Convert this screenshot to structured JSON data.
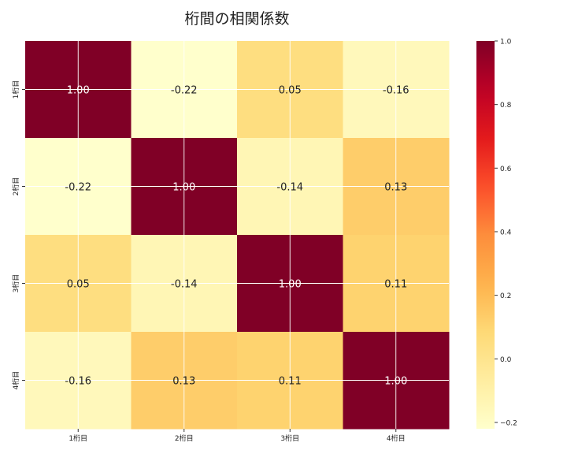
{
  "chart_data": {
    "type": "heatmap",
    "title": "桁間の相関係数",
    "xlabel": "",
    "ylabel": "",
    "x_categories": [
      "1桁目",
      "2桁目",
      "3桁目",
      "4桁目"
    ],
    "y_categories": [
      "1桁目",
      "2桁目",
      "3桁目",
      "4桁目"
    ],
    "values": [
      [
        1.0,
        -0.22,
        0.05,
        -0.16
      ],
      [
        -0.22,
        1.0,
        -0.14,
        0.13
      ],
      [
        0.05,
        -0.14,
        1.0,
        0.11
      ],
      [
        -0.16,
        0.13,
        0.11,
        1.0
      ]
    ],
    "colormap": "YlOrRd",
    "colorbar": {
      "range": [
        -0.22,
        1.0
      ],
      "ticks": [
        "1.0",
        "0.8",
        "0.6",
        "0.4",
        "0.2",
        "0.0",
        "−0.2"
      ],
      "tick_values": [
        1.0,
        0.8,
        0.6,
        0.4,
        0.2,
        0.0,
        -0.2
      ]
    },
    "grid": true,
    "annotation_format": "0.00"
  }
}
